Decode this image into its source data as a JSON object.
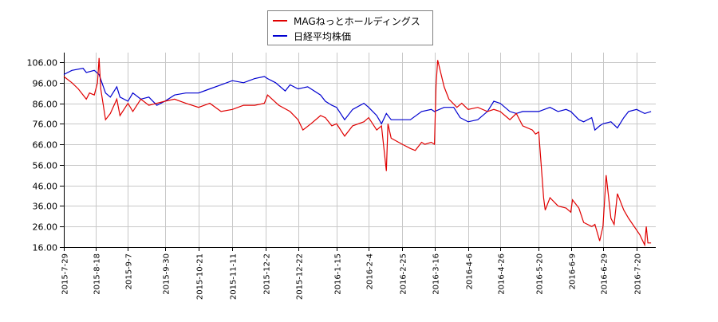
{
  "chart_data": {
    "type": "line",
    "title": "",
    "xlabel": "",
    "ylabel": "",
    "ylim": [
      16,
      106
    ],
    "yticks": [
      "16.00",
      "26.00",
      "36.00",
      "46.00",
      "56.00",
      "66.00",
      "76.00",
      "86.00",
      "96.00",
      "106.00"
    ],
    "xticks": [
      "2015-7-29",
      "2015-8-18",
      "2015-9-7",
      "2015-9-30",
      "2015-10-21",
      "2015-11-11",
      "2015-12-2",
      "2015-12-22",
      "2016-1-15",
      "2016-2-4",
      "2016-2-25",
      "2016-3-16",
      "2016-4-6",
      "2016-4-26",
      "2016-5-20",
      "2016-6-9",
      "2016-6-29",
      "2016-7-20"
    ],
    "grid": true,
    "legend_position": "top-center",
    "series": [
      {
        "name": "MAGねっとホールディングス",
        "color": "#e00000",
        "points": [
          [
            "2015-7-29",
            99
          ],
          [
            "2015-8-3",
            96
          ],
          [
            "2015-8-7",
            93
          ],
          [
            "2015-8-12",
            88
          ],
          [
            "2015-8-14",
            91
          ],
          [
            "2015-8-17",
            90
          ],
          [
            "2015-8-19",
            96
          ],
          [
            "2015-8-20",
            108
          ],
          [
            "2015-8-21",
            93
          ],
          [
            "2015-8-24",
            78
          ],
          [
            "2015-8-27",
            81
          ],
          [
            "2015-8-31",
            88
          ],
          [
            "2015-9-2",
            80
          ],
          [
            "2015-9-7",
            86
          ],
          [
            "2015-9-10",
            82
          ],
          [
            "2015-9-15",
            88
          ],
          [
            "2015-9-20",
            85
          ],
          [
            "2015-9-25",
            86
          ],
          [
            "2015-9-30",
            87
          ],
          [
            "2015-10-6",
            88
          ],
          [
            "2015-10-13",
            86
          ],
          [
            "2015-10-21",
            84
          ],
          [
            "2015-10-28",
            86
          ],
          [
            "2015-11-4",
            82
          ],
          [
            "2015-11-11",
            83
          ],
          [
            "2015-11-18",
            85
          ],
          [
            "2015-11-25",
            85
          ],
          [
            "2015-12-1",
            86
          ],
          [
            "2015-12-3",
            90
          ],
          [
            "2015-12-10",
            85
          ],
          [
            "2015-12-17",
            82
          ],
          [
            "2015-12-22",
            78
          ],
          [
            "2015-12-25",
            73
          ],
          [
            "2015-12-30",
            76
          ],
          [
            "2016-1-5",
            80
          ],
          [
            "2016-1-8",
            79
          ],
          [
            "2016-1-12",
            75
          ],
          [
            "2016-1-15",
            76
          ],
          [
            "2016-1-20",
            70
          ],
          [
            "2016-1-25",
            75
          ],
          [
            "2016-2-1",
            77
          ],
          [
            "2016-2-4",
            79
          ],
          [
            "2016-2-9",
            73
          ],
          [
            "2016-2-12",
            75
          ],
          [
            "2016-2-15",
            53
          ],
          [
            "2016-2-16",
            76
          ],
          [
            "2016-2-18",
            69
          ],
          [
            "2016-2-25",
            66
          ],
          [
            "2016-3-1",
            64
          ],
          [
            "2016-3-4",
            63
          ],
          [
            "2016-3-8",
            67
          ],
          [
            "2016-3-10",
            66
          ],
          [
            "2016-3-14",
            67
          ],
          [
            "2016-3-16",
            66
          ],
          [
            "2016-3-17",
            95
          ],
          [
            "2016-3-18",
            107
          ],
          [
            "2016-3-22",
            94
          ],
          [
            "2016-3-25",
            88
          ],
          [
            "2016-3-30",
            84
          ],
          [
            "2016-4-2",
            86
          ],
          [
            "2016-4-6",
            83
          ],
          [
            "2016-4-12",
            84
          ],
          [
            "2016-4-18",
            82
          ],
          [
            "2016-4-22",
            83
          ],
          [
            "2016-4-26",
            82
          ],
          [
            "2016-5-2",
            78
          ],
          [
            "2016-5-6",
            81
          ],
          [
            "2016-5-10",
            75
          ],
          [
            "2016-5-16",
            73
          ],
          [
            "2016-5-18",
            71
          ],
          [
            "2016-5-20",
            72
          ],
          [
            "2016-5-23",
            40
          ],
          [
            "2016-5-24",
            34
          ],
          [
            "2016-5-27",
            40
          ],
          [
            "2016-6-1",
            36
          ],
          [
            "2016-6-6",
            35
          ],
          [
            "2016-6-9",
            33
          ],
          [
            "2016-6-10",
            39
          ],
          [
            "2016-6-14",
            35
          ],
          [
            "2016-6-17",
            28
          ],
          [
            "2016-6-22",
            26
          ],
          [
            "2016-6-24",
            27
          ],
          [
            "2016-6-27",
            19
          ],
          [
            "2016-6-29",
            26
          ],
          [
            "2016-7-1",
            51
          ],
          [
            "2016-7-4",
            30
          ],
          [
            "2016-7-6",
            27
          ],
          [
            "2016-7-8",
            42
          ],
          [
            "2016-7-12",
            34
          ],
          [
            "2016-7-15",
            30
          ],
          [
            "2016-7-22",
            22
          ],
          [
            "2016-7-25",
            17
          ],
          [
            "2016-7-26",
            26
          ],
          [
            "2016-7-27",
            18
          ],
          [
            "2016-7-29",
            18
          ]
        ]
      },
      {
        "name": "日経平均株価",
        "color": "#0000d0",
        "points": [
          [
            "2015-7-29",
            100
          ],
          [
            "2015-8-3",
            102
          ],
          [
            "2015-8-10",
            103
          ],
          [
            "2015-8-12",
            101
          ],
          [
            "2015-8-17",
            102
          ],
          [
            "2015-8-20",
            100
          ],
          [
            "2015-8-24",
            91
          ],
          [
            "2015-8-27",
            89
          ],
          [
            "2015-8-31",
            94
          ],
          [
            "2015-9-2",
            89
          ],
          [
            "2015-9-7",
            87
          ],
          [
            "2015-9-10",
            91
          ],
          [
            "2015-9-15",
            88
          ],
          [
            "2015-9-20",
            89
          ],
          [
            "2015-9-25",
            85
          ],
          [
            "2015-9-30",
            87
          ],
          [
            "2015-10-6",
            90
          ],
          [
            "2015-10-13",
            91
          ],
          [
            "2015-10-21",
            91
          ],
          [
            "2015-10-28",
            93
          ],
          [
            "2015-11-4",
            95
          ],
          [
            "2015-11-11",
            97
          ],
          [
            "2015-11-18",
            96
          ],
          [
            "2015-11-25",
            98
          ],
          [
            "2015-12-1",
            99
          ],
          [
            "2015-12-3",
            98
          ],
          [
            "2015-12-8",
            96
          ],
          [
            "2015-12-14",
            92
          ],
          [
            "2015-12-17",
            95
          ],
          [
            "2015-12-22",
            93
          ],
          [
            "2015-12-28",
            94
          ],
          [
            "2016-1-5",
            90
          ],
          [
            "2016-1-8",
            87
          ],
          [
            "2016-1-12",
            85
          ],
          [
            "2016-1-15",
            84
          ],
          [
            "2016-1-20",
            78
          ],
          [
            "2016-1-25",
            83
          ],
          [
            "2016-2-1",
            86
          ],
          [
            "2016-2-4",
            84
          ],
          [
            "2016-2-9",
            80
          ],
          [
            "2016-2-12",
            76
          ],
          [
            "2016-2-15",
            81
          ],
          [
            "2016-2-18",
            78
          ],
          [
            "2016-2-25",
            78
          ],
          [
            "2016-3-1",
            78
          ],
          [
            "2016-3-8",
            82
          ],
          [
            "2016-3-14",
            83
          ],
          [
            "2016-3-16",
            82
          ],
          [
            "2016-3-22",
            84
          ],
          [
            "2016-3-28",
            84
          ],
          [
            "2016-4-1",
            79
          ],
          [
            "2016-4-6",
            77
          ],
          [
            "2016-4-12",
            78
          ],
          [
            "2016-4-18",
            82
          ],
          [
            "2016-4-22",
            87
          ],
          [
            "2016-4-26",
            86
          ],
          [
            "2016-5-2",
            82
          ],
          [
            "2016-5-6",
            81
          ],
          [
            "2016-5-10",
            82
          ],
          [
            "2016-5-16",
            82
          ],
          [
            "2016-5-20",
            82
          ],
          [
            "2016-5-27",
            84
          ],
          [
            "2016-6-1",
            82
          ],
          [
            "2016-6-6",
            83
          ],
          [
            "2016-6-9",
            82
          ],
          [
            "2016-6-14",
            78
          ],
          [
            "2016-6-17",
            77
          ],
          [
            "2016-6-22",
            79
          ],
          [
            "2016-6-24",
            73
          ],
          [
            "2016-6-27",
            75
          ],
          [
            "2016-6-29",
            76
          ],
          [
            "2016-7-4",
            77
          ],
          [
            "2016-7-8",
            74
          ],
          [
            "2016-7-12",
            79
          ],
          [
            "2016-7-15",
            82
          ],
          [
            "2016-7-20",
            83
          ],
          [
            "2016-7-25",
            81
          ],
          [
            "2016-7-29",
            82
          ]
        ]
      }
    ]
  },
  "legend": {
    "items": [
      {
        "label": "MAGねっとホールディングス",
        "color": "#e00000"
      },
      {
        "label": "日経平均株価",
        "color": "#0000d0"
      }
    ]
  }
}
